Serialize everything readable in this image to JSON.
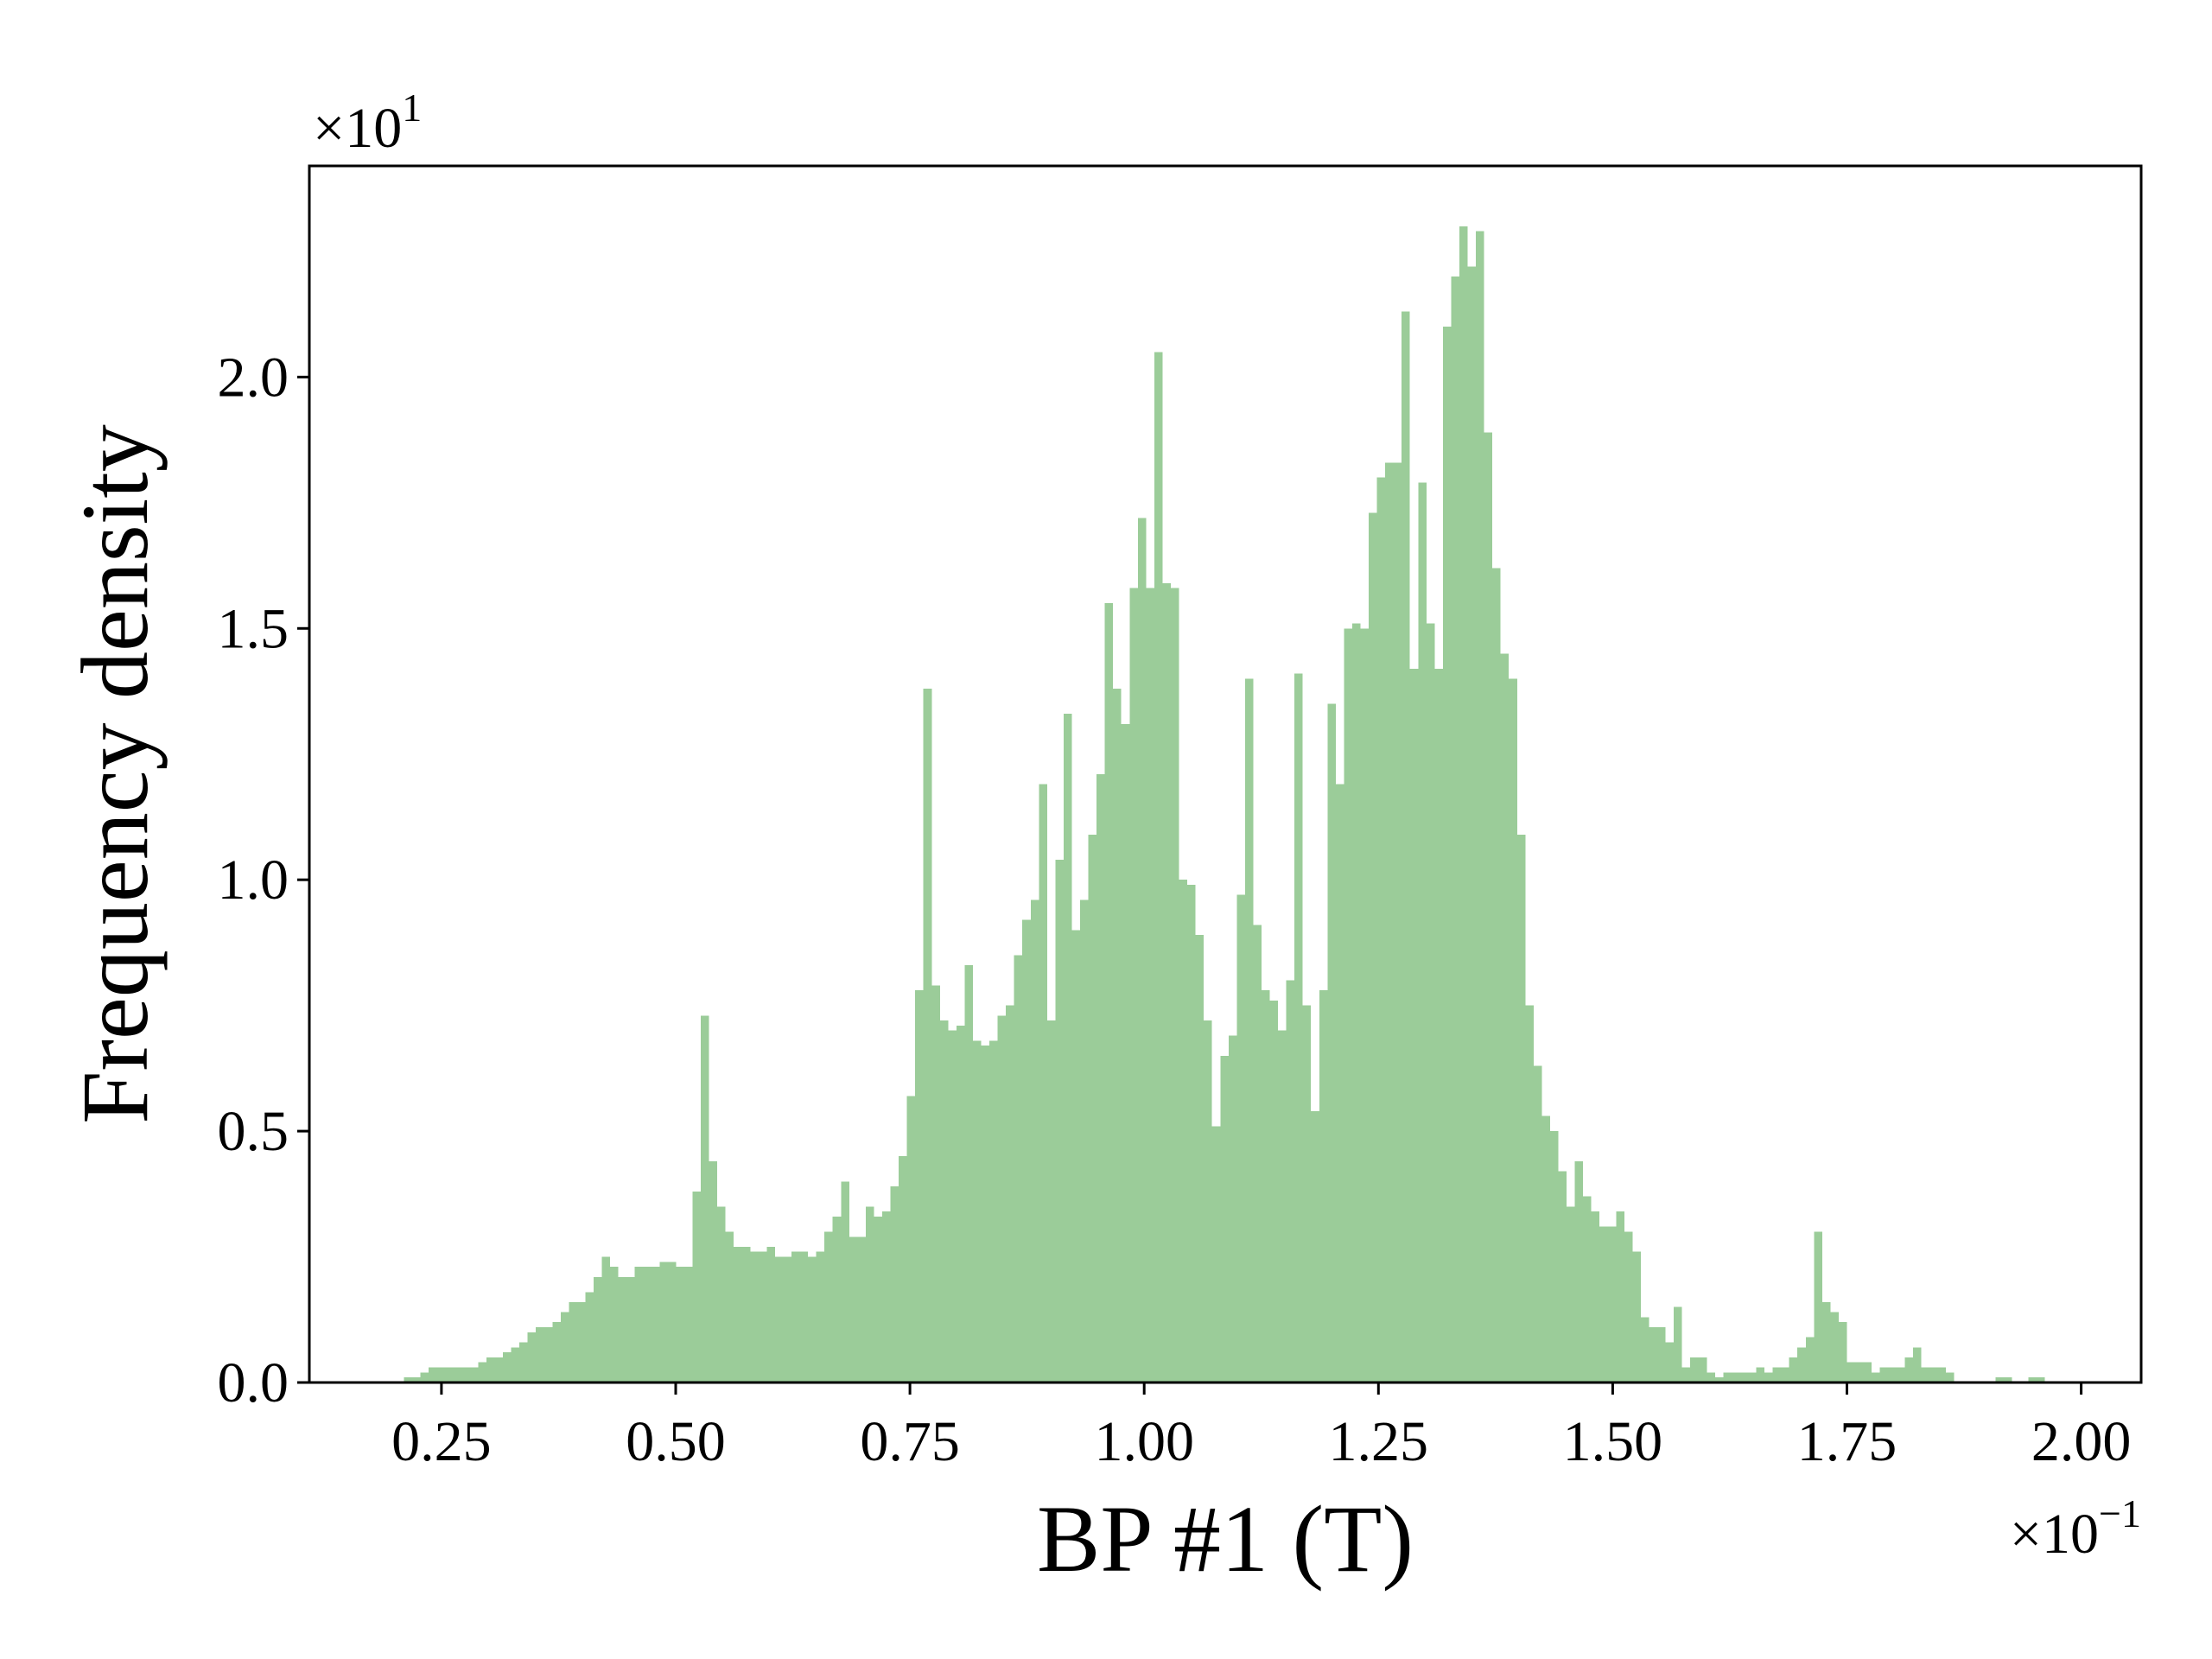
{
  "chart_data": {
    "type": "histogram",
    "x_label": "BP #1 (T)",
    "y_label": "Frequency density",
    "x_offset": {
      "base": "×10",
      "exponent": "−1"
    },
    "y_offset": {
      "base": "×10",
      "exponent": "1"
    },
    "color": "#9bcc99",
    "xlim": [
      0.109,
      2.064
    ],
    "ylim": [
      0,
      2.42
    ],
    "xticks": [
      {
        "value": 0.25,
        "label": "0.25"
      },
      {
        "value": 0.5,
        "label": "0.50"
      },
      {
        "value": 0.75,
        "label": "0.75"
      },
      {
        "value": 1.0,
        "label": "1.00"
      },
      {
        "value": 1.25,
        "label": "1.25"
      },
      {
        "value": 1.5,
        "label": "1.50"
      },
      {
        "value": 1.75,
        "label": "1.75"
      },
      {
        "value": 2.0,
        "label": "2.00"
      }
    ],
    "yticks": [
      {
        "value": 0,
        "label": "0.0"
      },
      {
        "value": 0.5,
        "label": "0.5"
      },
      {
        "value": 1.0,
        "label": "1.0"
      },
      {
        "value": 1.5,
        "label": "1.5"
      },
      {
        "value": 2.0,
        "label": "2.0"
      }
    ],
    "bins": [
      0.21,
      0.2188,
      0.2276,
      0.2364,
      0.2452,
      0.254,
      0.2628,
      0.2716,
      0.2804,
      0.2892,
      0.298,
      0.3068,
      0.3156,
      0.3244,
      0.3332,
      0.342,
      0.3508,
      0.3596,
      0.3684,
      0.3772,
      0.386,
      0.3948,
      0.4036,
      0.4124,
      0.4212,
      0.43,
      0.4388,
      0.4476,
      0.4564,
      0.4652,
      0.474,
      0.4828,
      0.4916,
      0.5004,
      0.5092,
      0.518,
      0.5268,
      0.5356,
      0.5444,
      0.5532,
      0.562,
      0.5708,
      0.5796,
      0.5884,
      0.5972,
      0.606,
      0.6148,
      0.6236,
      0.6324,
      0.6412,
      0.65,
      0.6588,
      0.6676,
      0.6764,
      0.6852,
      0.694,
      0.7028,
      0.7116,
      0.7204,
      0.7292,
      0.738,
      0.7468,
      0.7556,
      0.7644,
      0.7732,
      0.782,
      0.7908,
      0.7996,
      0.8084,
      0.8172,
      0.826,
      0.8348,
      0.8436,
      0.8524,
      0.8612,
      0.87,
      0.8788,
      0.8876,
      0.8964,
      0.9052,
      0.914,
      0.9228,
      0.9316,
      0.9404,
      0.9492,
      0.958,
      0.9668,
      0.9756,
      0.9844,
      0.9932,
      1.002,
      1.0108,
      1.0196,
      1.0284,
      1.0372,
      1.046,
      1.0548,
      1.0636,
      1.0724,
      1.0812,
      1.09,
      1.0988,
      1.1076,
      1.1164,
      1.1252,
      1.134,
      1.1428,
      1.1516,
      1.1604,
      1.1692,
      1.178,
      1.1868,
      1.1956,
      1.2044,
      1.2132,
      1.222,
      1.2308,
      1.2396,
      1.2484,
      1.2572,
      1.266,
      1.2748,
      1.2836,
      1.2924,
      1.3012,
      1.31,
      1.3188,
      1.3276,
      1.3364,
      1.3452,
      1.354,
      1.3628,
      1.3716,
      1.3804,
      1.3892,
      1.398,
      1.4068,
      1.4156,
      1.4244,
      1.4332,
      1.442,
      1.4508,
      1.4596,
      1.4684,
      1.4772,
      1.486,
      1.4948,
      1.5036,
      1.5124,
      1.5212,
      1.53,
      1.5388,
      1.5476,
      1.5564,
      1.5652,
      1.574,
      1.5828,
      1.5916,
      1.6004,
      1.6092,
      1.618,
      1.6268,
      1.6356,
      1.6444,
      1.6532,
      1.662,
      1.6708,
      1.6796,
      1.6884,
      1.6972,
      1.706,
      1.7148,
      1.7236,
      1.7324,
      1.7412,
      1.75,
      1.7588,
      1.7676,
      1.7764,
      1.7852,
      1.794,
      1.8028,
      1.8116,
      1.8204,
      1.8292,
      1.838,
      1.8468,
      1.8556,
      1.8644,
      1.8732,
      1.882,
      1.8908,
      1.8996,
      1.9084,
      1.9172,
      1.926,
      1.9348,
      1.9436,
      1.9524,
      1.9612,
      1.97
    ],
    "values": [
      0.01,
      0.01,
      0.02,
      0.03,
      0.03,
      0.03,
      0.03,
      0.03,
      0.03,
      0.04,
      0.05,
      0.05,
      0.06,
      0.07,
      0.08,
      0.1,
      0.11,
      0.11,
      0.12,
      0.14,
      0.16,
      0.16,
      0.18,
      0.21,
      0.25,
      0.23,
      0.21,
      0.21,
      0.23,
      0.23,
      0.23,
      0.24,
      0.24,
      0.23,
      0.23,
      0.38,
      0.73,
      0.44,
      0.35,
      0.3,
      0.27,
      0.27,
      0.26,
      0.26,
      0.27,
      0.25,
      0.25,
      0.26,
      0.26,
      0.25,
      0.26,
      0.3,
      0.33,
      0.4,
      0.29,
      0.29,
      0.35,
      0.33,
      0.34,
      0.39,
      0.45,
      0.57,
      0.78,
      1.38,
      0.79,
      0.72,
      0.7,
      0.71,
      0.83,
      0.68,
      0.67,
      0.68,
      0.73,
      0.75,
      0.85,
      0.92,
      0.96,
      1.19,
      0.72,
      1.04,
      1.33,
      0.9,
      0.96,
      1.09,
      1.21,
      1.55,
      1.38,
      1.31,
      1.58,
      1.72,
      1.58,
      2.05,
      1.59,
      1.58,
      1.0,
      0.99,
      0.89,
      0.72,
      0.51,
      0.65,
      0.69,
      0.97,
      1.4,
      0.91,
      0.78,
      0.76,
      0.7,
      0.8,
      1.41,
      0.75,
      0.54,
      0.78,
      1.35,
      1.19,
      1.5,
      1.51,
      1.5,
      1.73,
      1.8,
      1.83,
      1.83,
      2.13,
      1.42,
      1.79,
      1.51,
      1.42,
      2.1,
      2.2,
      2.3,
      2.22,
      2.29,
      1.89,
      1.62,
      1.45,
      1.4,
      1.09,
      0.75,
      0.63,
      0.53,
      0.5,
      0.42,
      0.35,
      0.44,
      0.37,
      0.34,
      0.31,
      0.31,
      0.34,
      0.3,
      0.26,
      0.13,
      0.11,
      0.11,
      0.08,
      0.15,
      0.03,
      0.05,
      0.05,
      0.02,
      0.01,
      0.02,
      0.02,
      0.02,
      0.02,
      0.03,
      0.02,
      0.03,
      0.03,
      0.05,
      0.07,
      0.09,
      0.3,
      0.16,
      0.14,
      0.12,
      0.04,
      0.04,
      0.04,
      0.02,
      0.03,
      0.03,
      0.03,
      0.05,
      0.07,
      0.03,
      0.03,
      0.03,
      0.02,
      0,
      0,
      0,
      0,
      0,
      0.01,
      0.01,
      0,
      0,
      0.01,
      0.01,
      0
    ]
  }
}
